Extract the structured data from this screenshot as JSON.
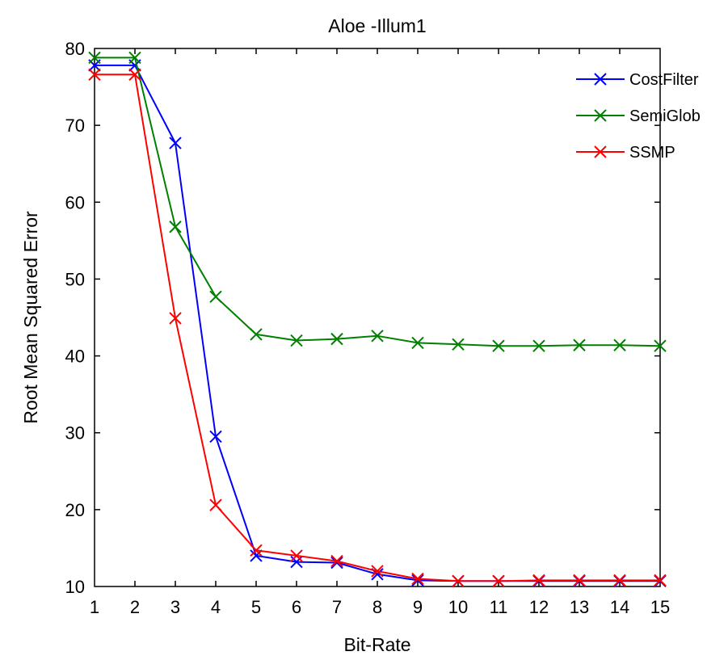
{
  "chart_data": {
    "type": "line",
    "title": "Aloe -Illum1",
    "xlabel": "Bit-Rate",
    "ylabel": "Root Mean Squared Error",
    "xlim": [
      1,
      15
    ],
    "ylim": [
      10,
      80
    ],
    "x": [
      1,
      2,
      3,
      4,
      5,
      6,
      7,
      8,
      9,
      10,
      11,
      12,
      13,
      14,
      15
    ],
    "x_ticks": [
      "1",
      "2",
      "3",
      "4",
      "5",
      "6",
      "7",
      "8",
      "9",
      "10",
      "11",
      "12",
      "13",
      "14",
      "15"
    ],
    "y_ticks": [
      "10",
      "20",
      "30",
      "40",
      "50",
      "60",
      "70",
      "80"
    ],
    "grid": false,
    "legend_position": "top-right",
    "series": [
      {
        "name": "CostFilter",
        "color": "#0000ff",
        "marker": "x",
        "values": [
          77.8,
          77.8,
          67.7,
          29.5,
          14.0,
          13.2,
          13.1,
          11.6,
          10.8,
          10.7,
          10.7,
          10.7,
          10.7,
          10.7,
          10.7
        ]
      },
      {
        "name": "SemiGlob",
        "color": "#008000",
        "marker": "x",
        "values": [
          78.8,
          78.8,
          56.8,
          47.7,
          42.8,
          42.0,
          42.2,
          42.6,
          41.7,
          41.5,
          41.3,
          41.3,
          41.4,
          41.4,
          41.3
        ]
      },
      {
        "name": "SSMP",
        "color": "#ff0000",
        "marker": "x",
        "values": [
          76.6,
          76.6,
          44.9,
          20.6,
          14.7,
          14.0,
          13.3,
          12.0,
          11.0,
          10.7,
          10.7,
          10.8,
          10.8,
          10.8,
          10.8
        ]
      }
    ]
  }
}
